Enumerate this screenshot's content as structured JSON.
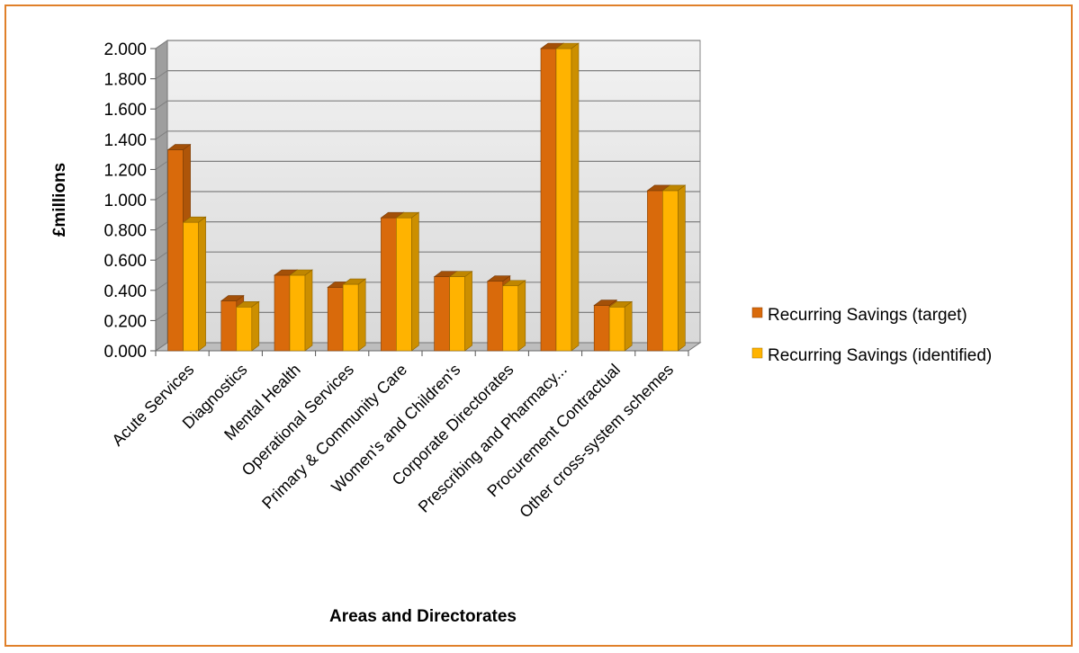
{
  "chart_data": {
    "type": "bar",
    "xlabel": "Areas and Directorates",
    "ylabel": "£millions",
    "ylim": [
      0,
      2.0
    ],
    "yticks": [
      "0.000",
      "0.200",
      "0.400",
      "0.600",
      "0.800",
      "1.000",
      "1.200",
      "1.400",
      "1.600",
      "1.800",
      "2.000"
    ],
    "grid": true,
    "legend_position": "right",
    "categories": [
      "Acute Services",
      "Diagnostics",
      "Mental Health",
      "Operational Services",
      "Primary & Community Care",
      "Women's and Children's",
      "Corporate Directorates",
      "Prescribing and Pharmacy...",
      "Procurement Contractual",
      "Other cross-system schemes"
    ],
    "series": [
      {
        "name": "Recurring Savings (target)",
        "color": "#d96a0b",
        "values": [
          1.33,
          0.33,
          0.5,
          0.42,
          0.88,
          0.49,
          0.46,
          2.0,
          0.3,
          1.06
        ]
      },
      {
        "name": "Recurring Savings (identified)",
        "color": "#ffb300",
        "values": [
          0.85,
          0.29,
          0.5,
          0.44,
          0.88,
          0.49,
          0.43,
          2.0,
          0.29,
          1.06
        ]
      }
    ]
  }
}
